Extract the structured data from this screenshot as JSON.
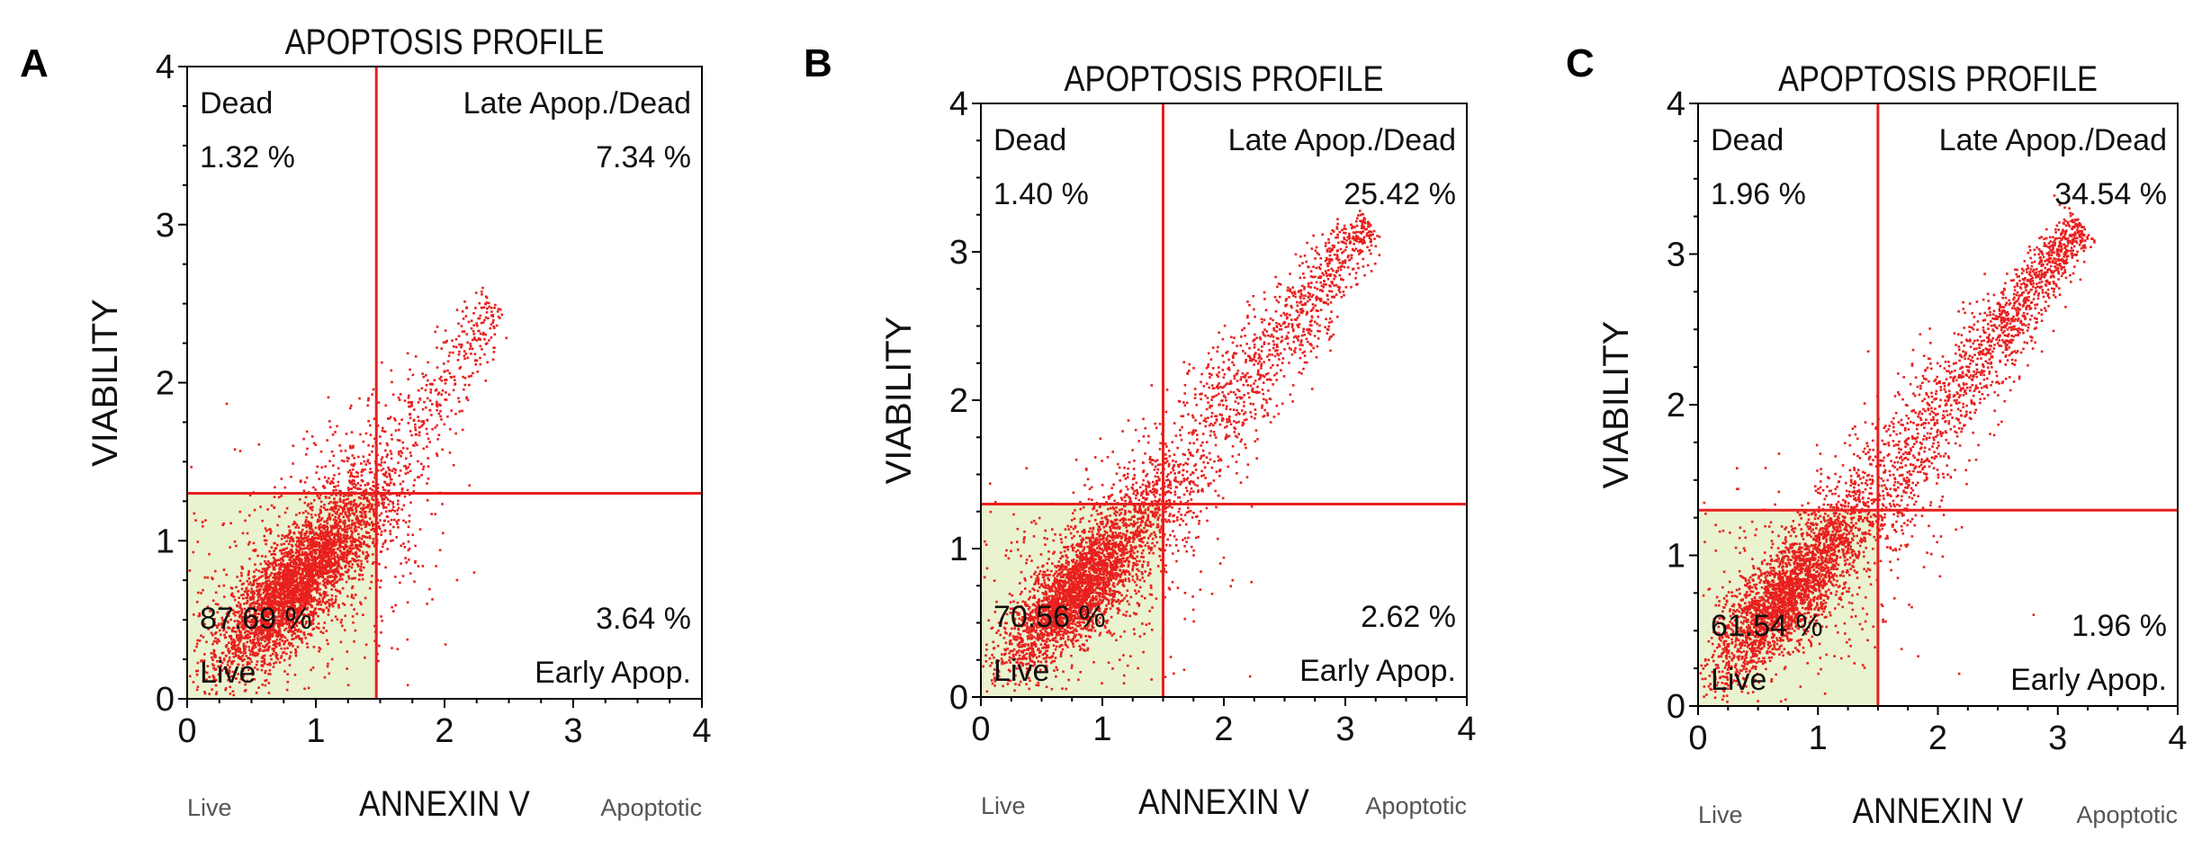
{
  "figure": {
    "panels": [
      {
        "letter": "A"
      },
      {
        "letter": "B"
      },
      {
        "letter": "C"
      }
    ]
  },
  "colors": {
    "dots": "#e8201e",
    "gate_lines": "#e8201e",
    "live_fill": "#eaf3cf",
    "axis": "#000000",
    "sublabel": "#555555"
  },
  "chart_data": [
    {
      "type": "scatter",
      "panel_label": "A",
      "title": "APOPTOSIS PROFILE",
      "xlabel": "ANNEXIN V",
      "ylabel": "VIABILITY",
      "x_left_label": "Live",
      "x_right_label": "Apoptotic",
      "xlim": [
        0,
        4
      ],
      "ylim": [
        0,
        4
      ],
      "xticks": [
        "0",
        "1",
        "2",
        "3",
        "4"
      ],
      "yticks": [
        "0",
        "1",
        "2",
        "3",
        "4"
      ],
      "gate": {
        "x": 1.47,
        "y": 1.3
      },
      "quadrants": {
        "dead": {
          "label": "Dead",
          "value": "1.32 %"
        },
        "late": {
          "label": "Late Apop./Dead",
          "value": "7.34 %"
        },
        "live": {
          "label": "Live",
          "value": "87.69 %"
        },
        "early": {
          "label": "Early Apop.",
          "value": "3.64 %"
        }
      },
      "population": {
        "core_center": [
          0.85,
          0.72
        ],
        "tail_end": [
          2.4,
          2.5
        ],
        "tail_fraction": 0.1
      }
    },
    {
      "type": "scatter",
      "panel_label": "B",
      "title": "APOPTOSIS PROFILE",
      "xlabel": "ANNEXIN V",
      "ylabel": "VIABILITY",
      "x_left_label": "Live",
      "x_right_label": "Apoptotic",
      "xlim": [
        0,
        4
      ],
      "ylim": [
        0,
        4
      ],
      "xticks": [
        "0",
        "1",
        "2",
        "3",
        "4"
      ],
      "yticks": [
        "0",
        "1",
        "2",
        "3",
        "4"
      ],
      "gate": {
        "x": 1.5,
        "y": 1.3
      },
      "quadrants": {
        "dead": {
          "label": "Dead",
          "value": "1.40 %"
        },
        "late": {
          "label": "Late Apop./Dead",
          "value": "25.42 %"
        },
        "live": {
          "label": "Live",
          "value": "70.56 %"
        },
        "early": {
          "label": "Early Apop.",
          "value": "2.62 %"
        }
      },
      "population": {
        "core_center": [
          0.8,
          0.72
        ],
        "tail_end": [
          3.2,
          3.2
        ],
        "tail_fraction": 0.27
      }
    },
    {
      "type": "scatter",
      "panel_label": "C",
      "title": "APOPTOSIS PROFILE",
      "xlabel": "ANNEXIN V",
      "ylabel": "VIABILITY",
      "x_left_label": "Live",
      "x_right_label": "Apoptotic",
      "xlim": [
        0,
        4
      ],
      "ylim": [
        0,
        4
      ],
      "xticks": [
        "0",
        "1",
        "2",
        "3",
        "4"
      ],
      "yticks": [
        "0",
        "1",
        "2",
        "3",
        "4"
      ],
      "gate": {
        "x": 1.5,
        "y": 1.3
      },
      "quadrants": {
        "dead": {
          "label": "Dead",
          "value": "1.96 %"
        },
        "late": {
          "label": "Late Apop./Dead",
          "value": "34.54 %"
        },
        "live": {
          "label": "Live",
          "value": "61.54 %"
        },
        "early": {
          "label": "Early Apop.",
          "value": "1.96 %"
        }
      },
      "population": {
        "core_center": [
          0.75,
          0.75
        ],
        "tail_end": [
          3.2,
          3.2
        ],
        "tail_fraction": 0.36
      }
    }
  ]
}
